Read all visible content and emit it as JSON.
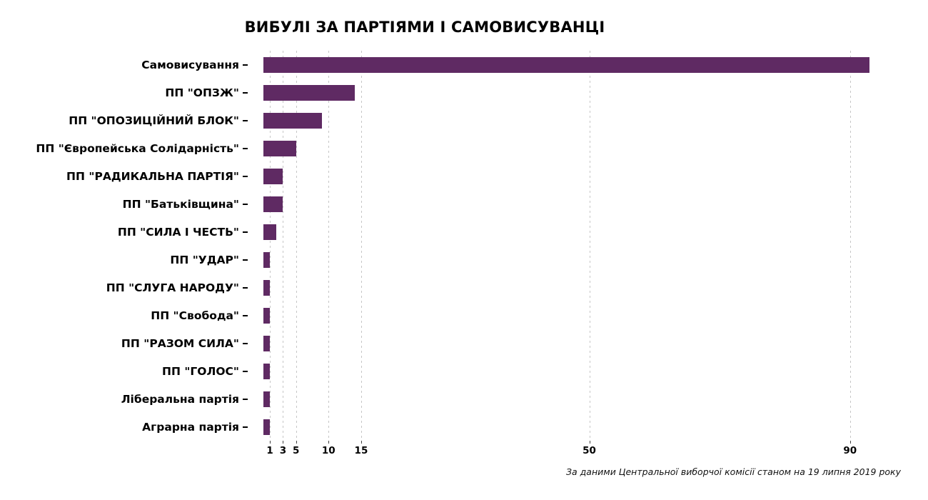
{
  "chart_data": {
    "type": "bar",
    "orientation": "horizontal",
    "title": "ВИБУЛІ ЗА ПАРТІЯМИ І САМОВИСУВАНЦІ",
    "source": "За даними Центральної виборчої комісії станом на 19 липня 2019 року",
    "categories": [
      "Самовисування",
      "ПП \"ОПЗЖ\"",
      "ПП \"ОПОЗИЦІЙНИЙ БЛОК\"",
      "ПП \"Європейська Солідарність\"",
      "ПП \"РАДИКАЛЬНА ПАРТІЯ\"",
      "ПП \"Батьківщина\"",
      "ПП \"СИЛА І ЧЕСТЬ\"",
      "ПП \"УДАР\"",
      "ПП \"СЛУГА НАРОДУ\"",
      "ПП \"Свобода\"",
      "ПП \"РАЗОМ СИЛА\"",
      "ПП \"ГОЛОС\"",
      "Ліберальна партія",
      "Аграрна партія"
    ],
    "values": [
      93,
      14,
      9,
      5,
      3,
      3,
      2,
      1,
      1,
      1,
      1,
      1,
      1,
      1
    ],
    "x_ticks": [
      1,
      3,
      5,
      10,
      15,
      50,
      90
    ],
    "xlim": [
      0,
      97.8
    ],
    "bar_color": "#5f2a63",
    "grid": true,
    "grid_style": "dashed-vertical",
    "legend": false,
    "xlabel": "",
    "ylabel": ""
  }
}
